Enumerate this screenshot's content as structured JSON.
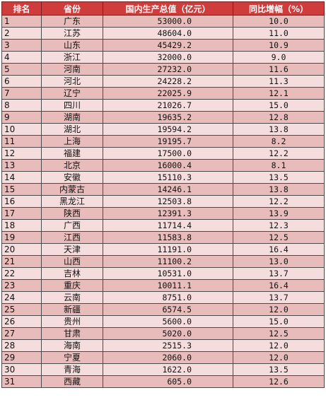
{
  "headers": [
    "排名",
    "省份",
    "国内生产总值（亿元）",
    "同比增幅（%）"
  ],
  "colors": {
    "header_bg": "#cf3c3c",
    "header_text": "#ffffff",
    "row_odd": "#e9bcbc",
    "row_even": "#f6dddd"
  },
  "rows": [
    {
      "rank": "1",
      "province": "广东",
      "gdp": "53000.0",
      "growth": "10.0"
    },
    {
      "rank": "2",
      "province": "江苏",
      "gdp": "48604.0",
      "growth": "11.0"
    },
    {
      "rank": "3",
      "province": "山东",
      "gdp": "45429.2",
      "growth": "10.9"
    },
    {
      "rank": "4",
      "province": "浙江",
      "gdp": "32000.0",
      "growth": "9.0"
    },
    {
      "rank": "5",
      "province": "河南",
      "gdp": "27232.0",
      "growth": "11.6"
    },
    {
      "rank": "6",
      "province": "河北",
      "gdp": "24228.2",
      "growth": "11.3"
    },
    {
      "rank": "7",
      "province": "辽宁",
      "gdp": "22025.9",
      "growth": "12.1"
    },
    {
      "rank": "8",
      "province": "四川",
      "gdp": "21026.7",
      "growth": "15.0"
    },
    {
      "rank": "9",
      "province": "湖南",
      "gdp": "19635.2",
      "growth": "12.8"
    },
    {
      "rank": "10",
      "province": "湖北",
      "gdp": "19594.2",
      "growth": "13.8"
    },
    {
      "rank": "11",
      "province": "上海",
      "gdp": "19195.7",
      "growth": "8.2"
    },
    {
      "rank": "12",
      "province": "福建",
      "gdp": "17500.0",
      "growth": "12.2"
    },
    {
      "rank": "13",
      "province": "北京",
      "gdp": "16000.4",
      "growth": "8.1"
    },
    {
      "rank": "14",
      "province": "安徽",
      "gdp": "15110.3",
      "growth": "13.5"
    },
    {
      "rank": "15",
      "province": "内蒙古",
      "gdp": "14246.1",
      "growth": "13.8"
    },
    {
      "rank": "16",
      "province": "黑龙江",
      "gdp": "12503.8",
      "growth": "12.2"
    },
    {
      "rank": "17",
      "province": "陕西",
      "gdp": "12391.3",
      "growth": "13.9"
    },
    {
      "rank": "18",
      "province": "广西",
      "gdp": "11714.4",
      "growth": "12.3"
    },
    {
      "rank": "19",
      "province": "江西",
      "gdp": "11583.8",
      "growth": "12.5"
    },
    {
      "rank": "20",
      "province": "天津",
      "gdp": "11191.0",
      "growth": "16.4"
    },
    {
      "rank": "21",
      "province": "山西",
      "gdp": "11100.2",
      "growth": "13.0"
    },
    {
      "rank": "22",
      "province": "吉林",
      "gdp": "10531.0",
      "growth": "13.7"
    },
    {
      "rank": "23",
      "province": "重庆",
      "gdp": "10011.1",
      "growth": "16.4"
    },
    {
      "rank": "24",
      "province": "云南",
      "gdp": "8751.0",
      "growth": "13.7"
    },
    {
      "rank": "25",
      "province": "新疆",
      "gdp": "6574.5",
      "growth": "12.0"
    },
    {
      "rank": "26",
      "province": "贵州",
      "gdp": "5600.0",
      "growth": "15.0"
    },
    {
      "rank": "27",
      "province": "甘肃",
      "gdp": "5020.0",
      "growth": "12.5"
    },
    {
      "rank": "28",
      "province": "海南",
      "gdp": "2515.3",
      "growth": "12.0"
    },
    {
      "rank": "29",
      "province": "宁夏",
      "gdp": "2060.0",
      "growth": "12.0"
    },
    {
      "rank": "30",
      "province": "青海",
      "gdp": "1622.0",
      "growth": "13.5"
    },
    {
      "rank": "31",
      "province": "西藏",
      "gdp": "605.0",
      "growth": "12.6"
    }
  ]
}
